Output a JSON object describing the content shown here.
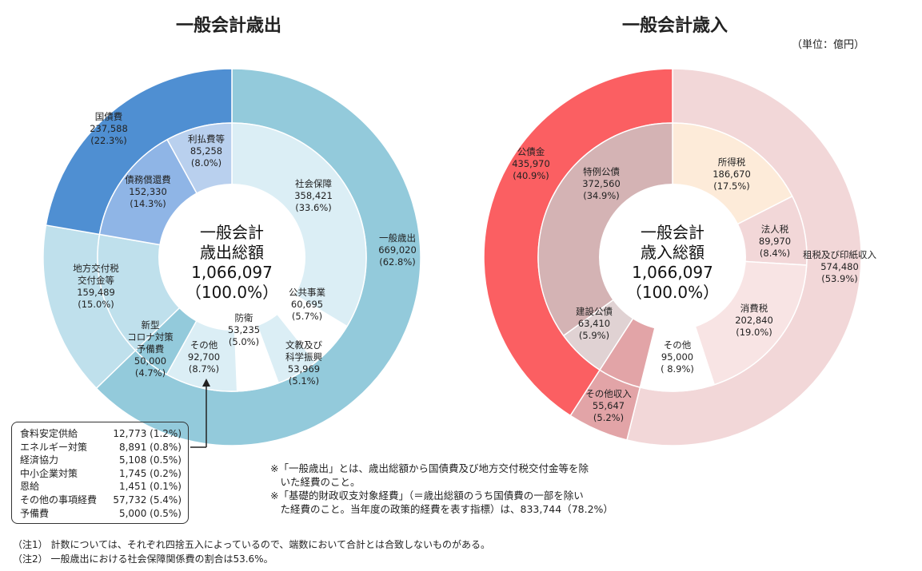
{
  "unit": "（単位：億円）",
  "chart_data": [
    {
      "type": "pie",
      "title": "一般会計歳出",
      "center": {
        "line1": "一般会計",
        "line2": "歳出総額",
        "value": "1,066,097",
        "pct": "（100.0%）"
      },
      "outer": [
        {
          "name": "一般歳出",
          "value": 669020,
          "pct": "62.8%",
          "color": "#93cadb"
        },
        {
          "name": "地方交付税交付金等",
          "value": 159489,
          "pct": "15.0%",
          "color": "#bfe0ec"
        },
        {
          "name": "国債費",
          "value": 237588,
          "pct": "22.3%",
          "color": "#4f8fd2"
        }
      ],
      "inner": [
        {
          "name": "社会保障",
          "value": 358421,
          "pct": "33.6%",
          "color": "#dbeef5"
        },
        {
          "name": "公共事業",
          "value": 60695,
          "pct": "5.7%",
          "color": "#ffffff"
        },
        {
          "name": "文教及び科学振興",
          "value": 53969,
          "pct": "5.1%",
          "color": "#dbeef5"
        },
        {
          "name": "防衛",
          "value": 53235,
          "pct": "5.0%",
          "color": "#ffffff"
        },
        {
          "name": "その他",
          "value": 92700,
          "pct": "8.7%",
          "color": "#dbeef5"
        },
        {
          "name": "新型コロナ対策予備費",
          "value": 50000,
          "pct": "4.7%",
          "color": "#93cadb"
        },
        {
          "name": "地方交付税交付金等",
          "value": 159489,
          "pct": "15.0%",
          "color": "#bfe0ec"
        },
        {
          "name": "債務償還費",
          "value": 152330,
          "pct": "14.3%",
          "color": "#8fb5e6"
        },
        {
          "name": "利払費等",
          "value": 85258,
          "pct": "8.0%",
          "color": "#b9d0ee"
        }
      ],
      "labels": [
        {
          "lines": [
            "一般歳出",
            "669,020",
            "(62.8%)"
          ]
        },
        {
          "lines": [
            "社会保障",
            "358,421",
            "(33.6%)"
          ]
        },
        {
          "lines": [
            "公共事業",
            "60,695",
            "(5.7%)"
          ]
        },
        {
          "lines": [
            "文教及び",
            "科学振興",
            "53,969",
            "(5.1%)"
          ]
        },
        {
          "lines": [
            "防衛",
            "53,235",
            "(5.0%)"
          ]
        },
        {
          "lines": [
            "その他",
            "92,700",
            "(8.7%)"
          ]
        },
        {
          "lines": [
            "新型",
            "コロナ対策",
            "予備費",
            "50,000",
            "(4.7%)"
          ]
        },
        {
          "lines": [
            "地方交付税",
            "交付金等",
            "159,489",
            "(15.0%)"
          ]
        },
        {
          "lines": [
            "債務償還費",
            "152,330",
            "(14.3%)"
          ]
        },
        {
          "lines": [
            "利払費等",
            "85,258",
            "(8.0%)"
          ]
        },
        {
          "lines": [
            "国債費",
            "237,588",
            "(22.3%)"
          ]
        }
      ]
    },
    {
      "type": "pie",
      "title": "一般会計歳入",
      "center": {
        "line1": "一般会計",
        "line2": "歳入総額",
        "value": "1,066,097",
        "pct": "（100.0%）"
      },
      "outer": [
        {
          "name": "租税及び印紙収入",
          "value": 574480,
          "pct": "53.9%",
          "color": "#f2d7d8"
        },
        {
          "name": "その他収入",
          "value": 55647,
          "pct": "5.2%",
          "color": "#e2a4a7"
        },
        {
          "name": "公債金",
          "value": 435970,
          "pct": "40.9%",
          "color": "#fb5f62"
        }
      ],
      "inner": [
        {
          "name": "所得税",
          "value": 186670,
          "pct": "17.5%",
          "color": "#fdebd9"
        },
        {
          "name": "法人税",
          "value": 89970,
          "pct": "8.4%",
          "color": "#f2d7d8"
        },
        {
          "name": "消費税",
          "value": 202840,
          "pct": "19.0%",
          "color": "#f8e4e4"
        },
        {
          "name": "その他",
          "value": 95000,
          "pct": "8.9%",
          "color": "#ffffff"
        },
        {
          "name": "その他収入",
          "value": 55647,
          "pct": "5.2%",
          "color": "#e2a4a7"
        },
        {
          "name": "建設公債",
          "value": 63410,
          "pct": "5.9%",
          "color": "#e0d2d3"
        },
        {
          "name": "特例公債",
          "value": 372560,
          "pct": "34.9%",
          "color": "#d4b3b4"
        }
      ],
      "labels": [
        {
          "lines": [
            "所得税",
            "186,670",
            "(17.5%)"
          ]
        },
        {
          "lines": [
            "法人税",
            "89,970",
            "(8.4%)"
          ]
        },
        {
          "lines": [
            "租税及び印紙収入",
            "574,480",
            "(53.9%)"
          ]
        },
        {
          "lines": [
            "消費税",
            "202,840",
            "(19.0%)"
          ]
        },
        {
          "lines": [
            "その他",
            "95,000",
            "( 8.9%)"
          ]
        },
        {
          "lines": [
            "その他収入",
            "55,647",
            "(5.2%)"
          ]
        },
        {
          "lines": [
            "建設公債",
            "63,410",
            "(5.9%)"
          ]
        },
        {
          "lines": [
            "特例公債",
            "372,560",
            "(34.9%)"
          ]
        },
        {
          "lines": [
            "公債金",
            "435,970",
            "(40.9%)"
          ]
        }
      ]
    }
  ],
  "breakdown": [
    {
      "name": "食料安定供給",
      "value": "12,773 (1.2%)"
    },
    {
      "name": "エネルギー対策",
      "value": "8,891 (0.8%)"
    },
    {
      "name": "経済協力",
      "value": "5,108 (0.5%)"
    },
    {
      "name": "中小企業対策",
      "value": "1,745 (0.2%)"
    },
    {
      "name": "恩給",
      "value": "1,451 (0.1%)"
    },
    {
      "name": "その他の事項経費",
      "value": "57,732 (5.4%)"
    },
    {
      "name": "予備費",
      "value": "5,000 (0.5%)"
    }
  ],
  "notes_mid": [
    "※「一般歳出」とは、歳出総額から国債費及び地方交付税交付金等を除",
    "　いた経費のこと。",
    "※「基礎的財政収支対象経費」（＝歳出総額のうち国債費の一部を除い",
    "　た経費のこと。当年度の政策的経費を表す指標）は、833,744（78.2%）"
  ],
  "notes_bottom": [
    "（注1） 計数については、それぞれ四捨五入によっているので、端数において合計とは合致しないものがある。",
    "（注2） 一般歳出における社会保障関係費の割合は53.6%。"
  ]
}
